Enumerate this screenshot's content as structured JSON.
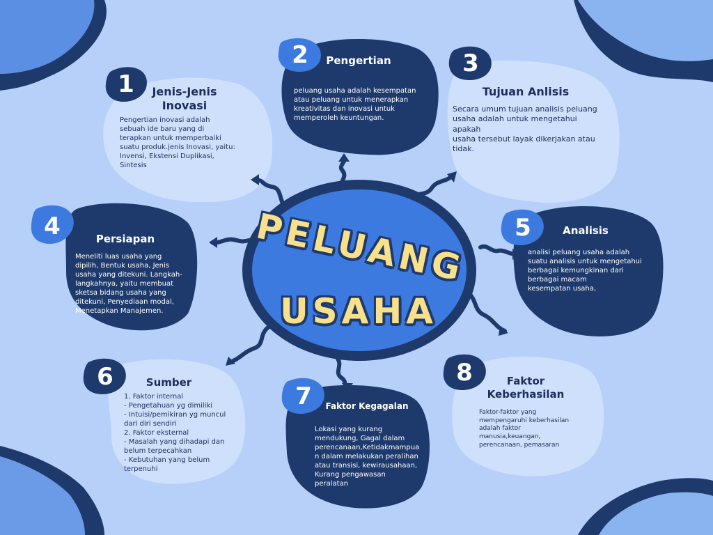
{
  "center": {
    "line1": "PELUANG",
    "line2": "USAHA"
  },
  "colors": {
    "background": "#b6d0fa",
    "dark_navy": "#1e3a6c",
    "accent_blue": "#3d7ae0",
    "light_blob": "#cfe0fc",
    "center_yellow": "#f9e08a"
  },
  "nodes": [
    {
      "number": "1",
      "title": "Jenis-Jenis\nInovasi",
      "text": "Pengertian inovasi adalah\nsebuah ide baru yang di\nterapkan untuk memperbaiki\nsuatu produk.jenis Inovasi, yaitu:\nInvensi, Ekstensi Duplikasi,\nSintesis"
    },
    {
      "number": "2",
      "title": "Pengertian",
      "text": " peluang usaha adalah kesempatan\natau peluang untuk menerapkan\nkreativitas dan inovasi untuk\nmemperoleh keuntungan."
    },
    {
      "number": "3",
      "title": "Tujuan Anlisis",
      "text": "Secara umum tujuan analisis peluang\nusaha adalah untuk mengetahui\napakah\nusaha tersebut layak dikerjakan atau\ntidak."
    },
    {
      "number": "4",
      "title": "Persiapan",
      "text": "Meneliti luas usaha yang\ndipilih, Bentuk usaha, Jenis\nusaha yang ditekuni. Langkah-\nlangkahnya, yaitu membuat\nsketsa bidang usaha yang\nditekuni, Penyediaan modal,\nMenetapkan Manajemen."
    },
    {
      "number": "5",
      "title": "Analisis",
      "text": "analisi peluang usaha adalah\nsuatu analisis untuk mengetahui\nberbagai kemungkinan dari\nberbagai macam\nkesempatan usaha,"
    },
    {
      "number": "6",
      "title": "Sumber",
      "text": "1. Faktor internal\n- Pengetahuan yg dimiliki\n- Intuisi/pemikiran yg muncul\ndari diri sendiri\n2. Faktor eksternal\n- Masalah yang dihadapi dan\nbelum terpecahkan\n- Kebutuhan yang belum\nterpenuhi"
    },
    {
      "number": "7",
      "title": "Faktor Kegagalan",
      "text": "Lokasi yang kurang\nmendukung, Gagal dalam\nperencanaan,Ketidakmampua\nn dalam melakukan peralihan\natau transisi, kewirausahaan,\nKurang pengawasan peralatan"
    },
    {
      "number": "8",
      "title": "Faktor\nKeberhasilan",
      "text": "Faktor-faktor yang\nmempengaruhi keberhasilan\nadalah faktor\nmanusia,keuangan,\nperencanaan, pemasaran"
    }
  ]
}
